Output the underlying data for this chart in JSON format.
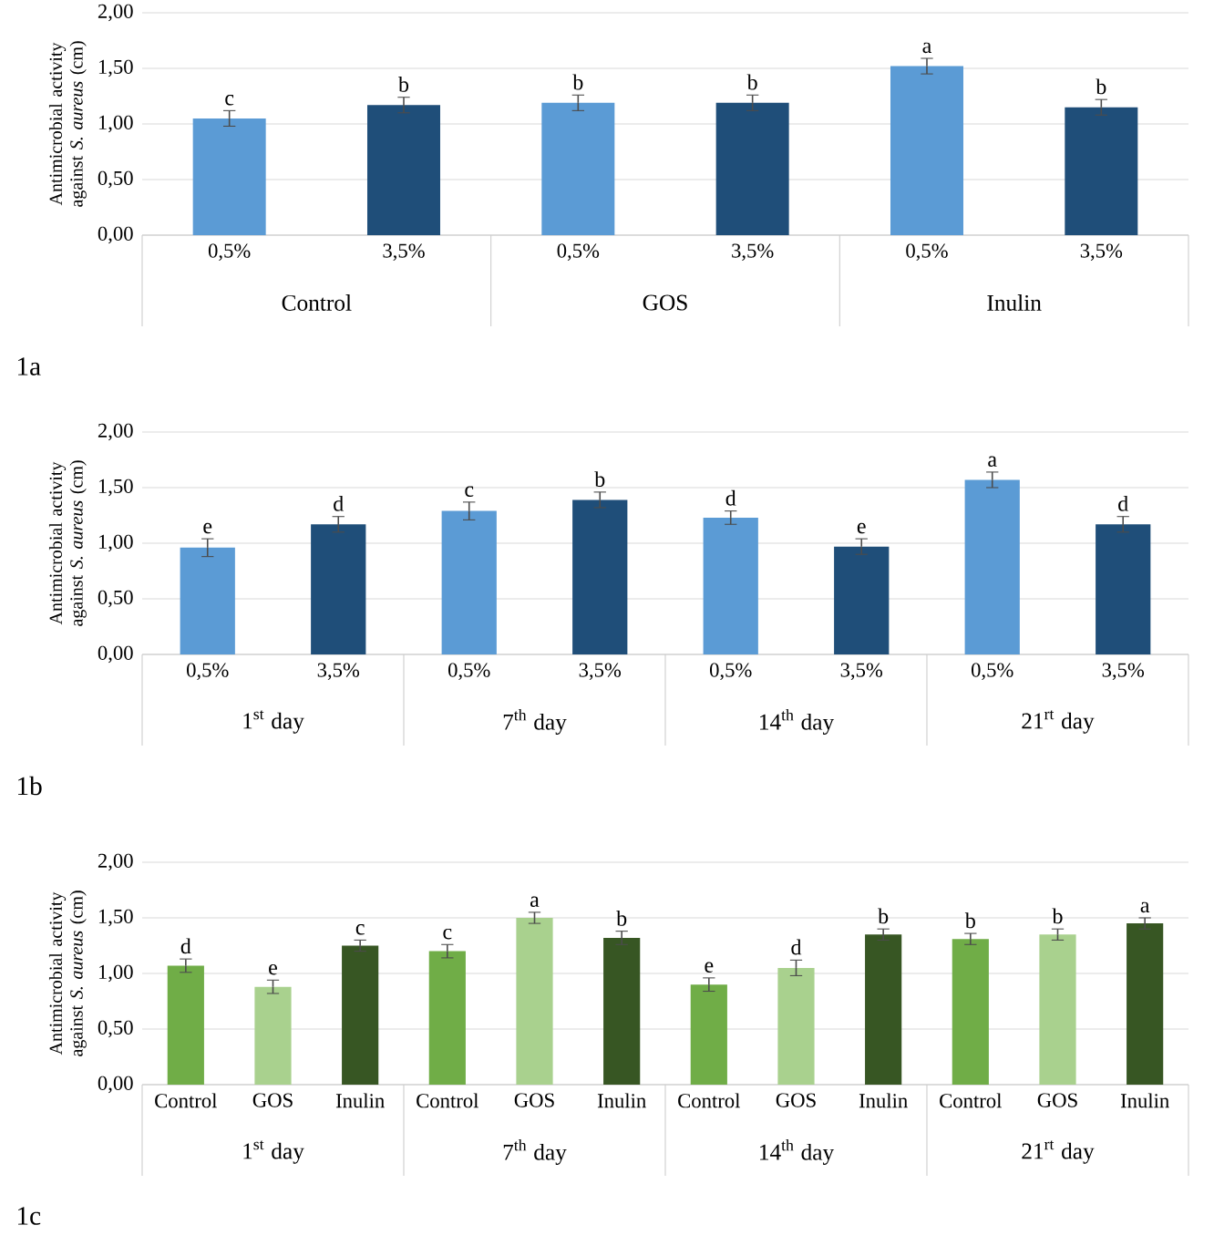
{
  "chart_data": [
    {
      "type": "bar",
      "title": "1a",
      "ylabel": "Antimicrobial activity against *S. aureus* (cm)",
      "categories": [
        "0,5%",
        "3,5%",
        "0,5%",
        "3,5%",
        "0,5%",
        "3,5%"
      ],
      "values": [
        1.05,
        1.17,
        1.19,
        1.19,
        1.52,
        1.15
      ],
      "errors": [
        0.07,
        0.07,
        0.07,
        0.07,
        0.07,
        0.07
      ],
      "colors": [
        "#5b9bd5",
        "#1f4e79",
        "#5b9bd5",
        "#1f4e79",
        "#5b9bd5",
        "#1f4e79"
      ],
      "value_labels": [
        "c",
        "b",
        "b",
        "b",
        "a",
        "b"
      ],
      "annotations": [
        "Control",
        "GOS",
        "Inulin"
      ],
      "ylim": [
        0,
        2
      ],
      "yticks": [
        {
          "value": 0,
          "label": "0,00"
        },
        {
          "value": 0.5,
          "label": "0,50"
        },
        {
          "value": 1,
          "label": "1,00"
        },
        {
          "value": 1.5,
          "label": "1,50"
        },
        {
          "value": 2,
          "label": "2,00"
        }
      ],
      "grid": "y"
    },
    {
      "type": "bar",
      "title": "1b",
      "ylabel": "Antimicrobial activity against *S. aureus* (cm)",
      "categories": [
        "0,5%",
        "3,5%",
        "0,5%",
        "3,5%",
        "0,5%",
        "3,5%",
        "0,5%",
        "3,5%"
      ],
      "values": [
        0.96,
        1.17,
        1.29,
        1.39,
        1.23,
        0.97,
        1.57,
        1.17
      ],
      "errors": [
        0.08,
        0.07,
        0.08,
        0.07,
        0.06,
        0.07,
        0.07,
        0.07
      ],
      "colors": [
        "#5b9bd5",
        "#1f4e79",
        "#5b9bd5",
        "#1f4e79",
        "#5b9bd5",
        "#1f4e79",
        "#5b9bd5",
        "#1f4e79"
      ],
      "value_labels": [
        "e",
        "d",
        "c",
        "b",
        "d",
        "e",
        "a",
        "d"
      ],
      "annotations": [
        "1$^{st}$ day",
        "7$^{th}$ day",
        "14$^{th}$ day",
        "21$^{rt}$ day"
      ],
      "ylim": [
        0,
        2
      ],
      "yticks": [
        {
          "value": 0,
          "label": "0,00"
        },
        {
          "value": 0.5,
          "label": "0,50"
        },
        {
          "value": 1,
          "label": "1,00"
        },
        {
          "value": 1.5,
          "label": "1,50"
        },
        {
          "value": 2,
          "label": "2,00"
        }
      ],
      "grid": "y"
    },
    {
      "type": "bar",
      "title": "1c",
      "ylabel": "Antimicrobial activity against *S. aureus* (cm)",
      "categories": [
        "Control",
        "GOS",
        "Inulin",
        "Control",
        "GOS",
        "Inulin",
        "Control",
        "GOS",
        "Inulin",
        "Control",
        "GOS",
        "Inulin"
      ],
      "values": [
        1.07,
        0.88,
        1.25,
        1.2,
        1.5,
        1.32,
        0.9,
        1.05,
        1.35,
        1.31,
        1.35,
        1.45
      ],
      "errors": [
        0.06,
        0.06,
        0.05,
        0.06,
        0.05,
        0.06,
        0.06,
        0.07,
        0.05,
        0.05,
        0.05,
        0.05
      ],
      "colors": [
        "#70ad47",
        "#a9d18e",
        "#375623",
        "#70ad47",
        "#a9d18e",
        "#375623",
        "#70ad47",
        "#a9d18e",
        "#375623",
        "#70ad47",
        "#a9d18e",
        "#375623"
      ],
      "value_labels": [
        "d",
        "e",
        "c",
        "c",
        "a",
        "b",
        "e",
        "d",
        "b",
        "b",
        "b",
        "a"
      ],
      "annotations": [
        "1$^{st}$ day",
        "7$^{th}$ day",
        "14$^{th}$ day",
        "21$^{rt}$ day"
      ],
      "ylim": [
        0,
        2
      ],
      "yticks": [
        {
          "value": 0,
          "label": "0,00"
        },
        {
          "value": 0.5,
          "label": "0,50"
        },
        {
          "value": 1,
          "label": "1,00"
        },
        {
          "value": 1.5,
          "label": "1,50"
        },
        {
          "value": 2,
          "label": "2,00"
        }
      ],
      "grid": "y"
    }
  ]
}
